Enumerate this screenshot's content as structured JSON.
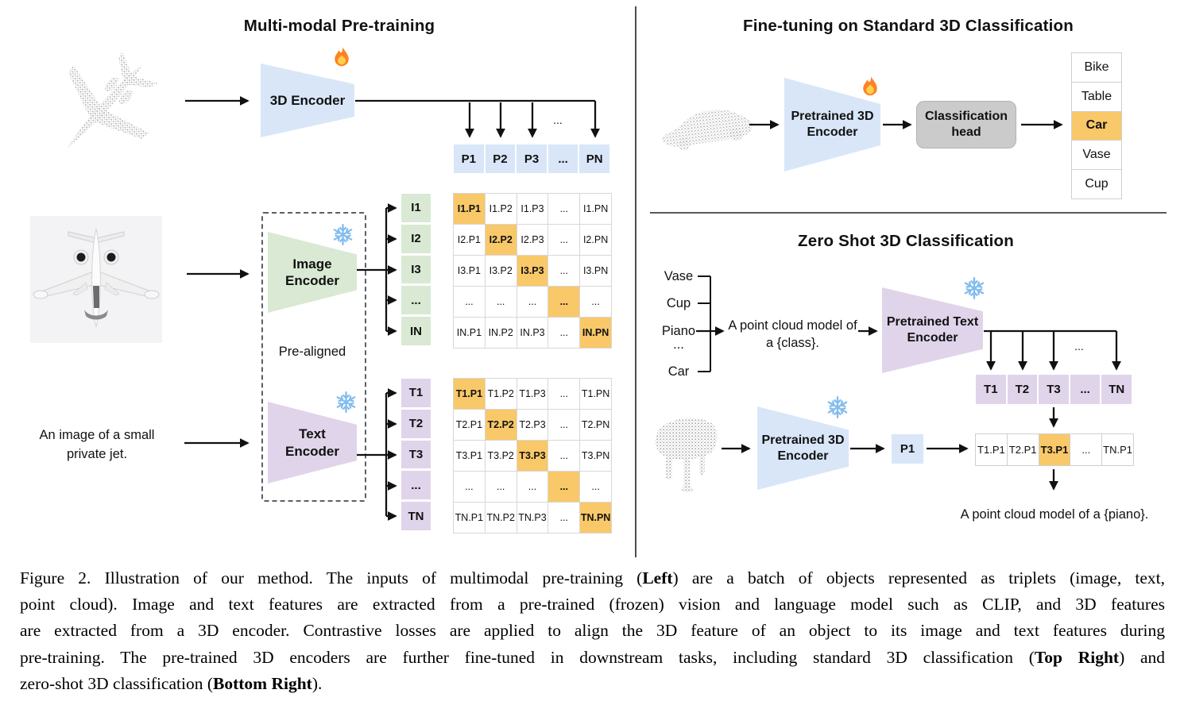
{
  "left": {
    "title": "Multi-modal Pre-training",
    "encoder3d": {
      "label": "3D Encoder"
    },
    "image_encoder": {
      "label": "Image\nEncoder"
    },
    "text_encoder": {
      "label": "Text\nEncoder"
    },
    "pre_aligned": "Pre-aligned",
    "prompt": "An image of a small\nprivate jet.",
    "p_row": [
      {
        "t": "P1"
      },
      {
        "t": "P2"
      },
      {
        "t": "P3"
      },
      {
        "t": "..."
      },
      {
        "t": "PN"
      }
    ],
    "i_col": [
      {
        "t": "I1"
      },
      {
        "t": "I2"
      },
      {
        "t": "I3"
      },
      {
        "t": "..."
      },
      {
        "t": "IN"
      }
    ],
    "t_col": [
      {
        "t": "T1"
      },
      {
        "t": "T2"
      },
      {
        "t": "T3"
      },
      {
        "t": "..."
      },
      {
        "t": "TN"
      }
    ],
    "i_matrix": [
      [
        {
          "t": "I1.P1",
          "hl": true
        },
        {
          "t": "I1.P2"
        },
        {
          "t": "I1.P3"
        },
        {
          "t": "..."
        },
        {
          "t": "I1.PN"
        }
      ],
      [
        {
          "t": "I2.P1"
        },
        {
          "t": "I2.P2",
          "hl": true
        },
        {
          "t": "I2.P3"
        },
        {
          "t": "..."
        },
        {
          "t": "I2.PN"
        }
      ],
      [
        {
          "t": "I3.P1"
        },
        {
          "t": "I3.P2"
        },
        {
          "t": "I3.P3",
          "hl": true
        },
        {
          "t": "..."
        },
        {
          "t": "I3.PN"
        }
      ],
      [
        {
          "t": "..."
        },
        {
          "t": "..."
        },
        {
          "t": "..."
        },
        {
          "t": "...",
          "hl": true
        },
        {
          "t": "..."
        }
      ],
      [
        {
          "t": "IN.P1"
        },
        {
          "t": "IN.P2"
        },
        {
          "t": "IN.P3"
        },
        {
          "t": "..."
        },
        {
          "t": "IN.PN",
          "hl": true
        }
      ]
    ],
    "t_matrix": [
      [
        {
          "t": "T1.P1",
          "hl": true
        },
        {
          "t": "T1.P2"
        },
        {
          "t": "T1.P3"
        },
        {
          "t": "..."
        },
        {
          "t": "T1.PN"
        }
      ],
      [
        {
          "t": "T2.P1"
        },
        {
          "t": "T2.P2",
          "hl": true
        },
        {
          "t": "T2.P3"
        },
        {
          "t": "..."
        },
        {
          "t": "T2.PN"
        }
      ],
      [
        {
          "t": "T3.P1"
        },
        {
          "t": "T3.P2"
        },
        {
          "t": "T3.P3",
          "hl": true
        },
        {
          "t": "..."
        },
        {
          "t": "T3.PN"
        }
      ],
      [
        {
          "t": "..."
        },
        {
          "t": "..."
        },
        {
          "t": "..."
        },
        {
          "t": "...",
          "hl": true
        },
        {
          "t": "..."
        }
      ],
      [
        {
          "t": "TN.P1"
        },
        {
          "t": "TN.P2"
        },
        {
          "t": "TN.P3"
        },
        {
          "t": "..."
        },
        {
          "t": "TN.PN",
          "hl": true
        }
      ]
    ],
    "diagonal_highlighted": true
  },
  "top_right": {
    "title": "Fine-tuning on Standard 3D Classification",
    "encoder": {
      "label": "Pretrained 3D\nEncoder"
    },
    "class_head": {
      "label": "Classification\nhead"
    },
    "classes": [
      {
        "t": "Bike"
      },
      {
        "t": "Table"
      },
      {
        "t": "Car",
        "hl": true
      },
      {
        "t": "Vase"
      },
      {
        "t": "Cup"
      }
    ]
  },
  "bottom_right": {
    "title": "Zero Shot 3D Classification",
    "classes": [
      {
        "t": "Vase"
      },
      {
        "t": "Cup"
      },
      {
        "t": "Piano"
      },
      {
        "t": "..."
      },
      {
        "t": "Car"
      }
    ],
    "prompt": "A point cloud model of\na {class}.",
    "text_encoder": {
      "label": "Pretrained Text\nEncoder"
    },
    "encoder3d": {
      "label": "Pretrained 3D\nEncoder"
    },
    "p1": "P1",
    "t_row": [
      {
        "t": "T1"
      },
      {
        "t": "T2"
      },
      {
        "t": "T3"
      },
      {
        "t": "..."
      },
      {
        "t": "TN"
      }
    ],
    "sim_row": [
      {
        "t": "T1.P1"
      },
      {
        "t": "T2.P1"
      },
      {
        "t": "T3.P1",
        "hl": true
      },
      {
        "t": "..."
      },
      {
        "t": "TN.P1"
      }
    ],
    "result": "A point cloud model of a {piano}."
  },
  "misc": {
    "dots": "..."
  },
  "colors": {
    "blue": "#d8e6f8",
    "green": "#d9e9d3",
    "purple": "#e0d4ea",
    "orange": "#f9c869",
    "gray_head": "#cbcbcb"
  },
  "caption": {
    "lines": [
      [
        [
          "Figure 2. Illustration of our method. The inputs of multimodal pre-training (",
          0
        ],
        [
          "Left",
          1
        ],
        [
          ") are a batch of objects represented as triplets (image, text,",
          0
        ]
      ],
      [
        [
          "point cloud). Image and text features are extracted from a pre-trained (frozen) vision and language model such as CLIP, and 3D features",
          0
        ]
      ],
      [
        [
          "are extracted from a 3D encoder. Contrastive losses are applied to align the 3D feature of an object to its image and text features during",
          0
        ]
      ],
      [
        [
          "pre-training. The pre-trained 3D encoders are further fine-tuned in downstream tasks, including standard 3D classification (",
          0
        ],
        [
          "Top Right",
          1
        ],
        [
          ") and",
          0
        ]
      ],
      [
        [
          "zero-shot 3D classification (",
          0
        ],
        [
          "Bottom Right",
          1
        ],
        [
          ").",
          0
        ]
      ]
    ]
  }
}
